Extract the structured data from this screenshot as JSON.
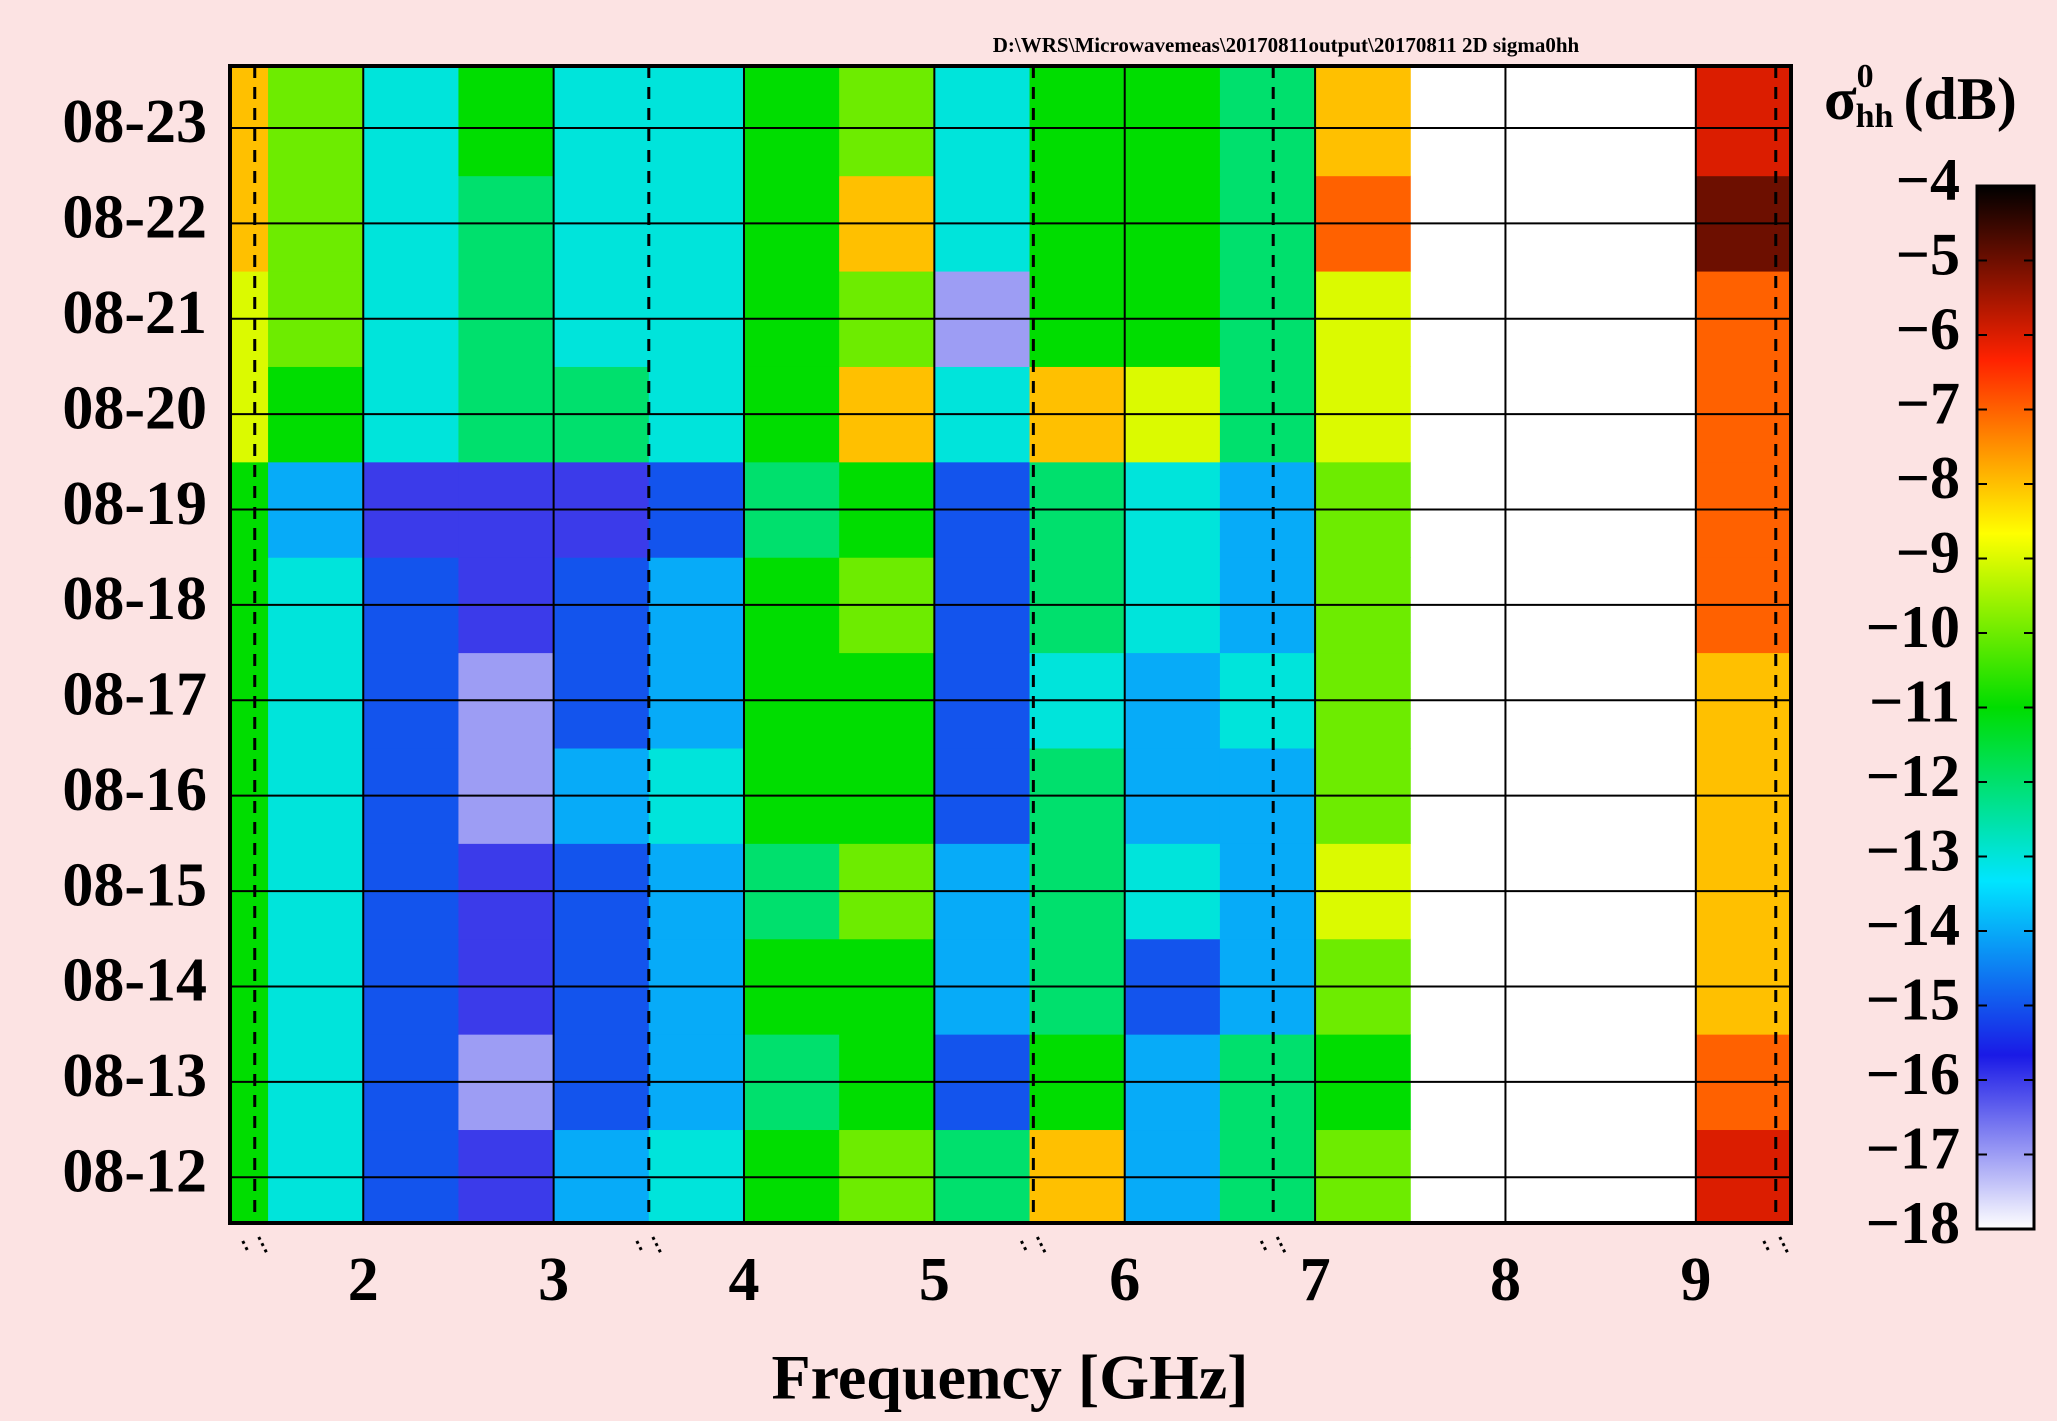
{
  "chart_data": {
    "type": "heatmap",
    "title": "D:\\WRS\\Microwavemeas\\20170811output\\20170811 2D sigma0hh",
    "x_label": "Frequency [GHz]",
    "colorbar_label": {
      "symbol": "σ",
      "sup": "0",
      "sub": "hh",
      "unit": "(dB)"
    },
    "x_bins": [
      1.3,
      1.5,
      2.0,
      2.5,
      3.0,
      3.5,
      4.0,
      4.5,
      5.0,
      5.5,
      6.0,
      6.5,
      7.0,
      7.5,
      8.0,
      8.5,
      9.0,
      9.5
    ],
    "xlim": [
      1.3,
      9.5
    ],
    "xticks": [
      2,
      3,
      4,
      5,
      6,
      7,
      8,
      9
    ],
    "y": [
      "08-12",
      "08-13",
      "08-14",
      "08-15",
      "08-16",
      "08-17",
      "08-18",
      "08-19",
      "08-20",
      "08-21",
      "08-22",
      "08-23"
    ],
    "z": [
      [
        -11,
        -13,
        -15,
        -16,
        -14,
        -13,
        -11,
        -10,
        -12,
        -8,
        -14,
        -12,
        -10,
        null,
        null,
        null,
        -6
      ],
      [
        -11,
        -13,
        -15,
        -17,
        -15,
        -14,
        -12,
        -11,
        -15,
        -11,
        -14,
        -12,
        -11,
        null,
        null,
        null,
        -7
      ],
      [
        -11,
        -13,
        -15,
        -16,
        -15,
        -14,
        -11,
        -11,
        -14,
        -12,
        -15,
        -14,
        -10,
        null,
        null,
        null,
        -8
      ],
      [
        -11,
        -13,
        -15,
        -16,
        -15,
        -14,
        -12,
        -10,
        -14,
        -12,
        -13,
        -14,
        -9,
        null,
        null,
        null,
        -8
      ],
      [
        -11,
        -13,
        -15,
        -17,
        -14,
        -13,
        -11,
        -11,
        -15,
        -12,
        -14,
        -14,
        -10,
        null,
        null,
        null,
        -8
      ],
      [
        -11,
        -13,
        -15,
        -17,
        -15,
        -14,
        -11,
        -11,
        -15,
        -13,
        -14,
        -13,
        -10,
        null,
        null,
        null,
        -8
      ],
      [
        -11,
        -13,
        -15,
        -16,
        -15,
        -14,
        -11,
        -10,
        -15,
        -12,
        -13,
        -14,
        -10,
        null,
        null,
        null,
        -7
      ],
      [
        -11,
        -14,
        -16,
        -16,
        -16,
        -15,
        -12,
        -11,
        -15,
        -12,
        -13,
        -14,
        -10,
        null,
        null,
        null,
        -7
      ],
      [
        -9,
        -11,
        -13,
        -12,
        -12,
        -13,
        -11,
        -8,
        -13,
        -8,
        -9,
        -12,
        -9,
        null,
        null,
        null,
        -7
      ],
      [
        -9,
        -10,
        -13,
        -12,
        -13,
        -13,
        -11,
        -10,
        -17,
        -11,
        -11,
        -12,
        -9,
        null,
        null,
        null,
        -7
      ],
      [
        -8,
        -10,
        -13,
        -12,
        -13,
        -13,
        -11,
        -8,
        -13,
        -11,
        -11,
        -12,
        -7,
        null,
        null,
        null,
        -5
      ],
      [
        -8,
        -10,
        -13,
        -11,
        -13,
        -13,
        -11,
        -10,
        -13,
        -11,
        -11,
        -12,
        -8,
        null,
        null,
        null,
        -6
      ]
    ],
    "dashed_lines": [
      1.43,
      3.5,
      5.52,
      6.78,
      9.42
    ],
    "clim": [
      -18,
      -4
    ],
    "cticks": [
      {
        "value": -4,
        "label": "−4"
      },
      {
        "value": -5,
        "label": "−5"
      },
      {
        "value": -6,
        "label": "−6"
      },
      {
        "value": -7,
        "label": "−7"
      },
      {
        "value": -8,
        "label": "−8"
      },
      {
        "value": -9,
        "label": "−9"
      },
      {
        "value": -10,
        "label": "−10"
      },
      {
        "value": -11,
        "label": "−11"
      },
      {
        "value": -12,
        "label": "−12"
      },
      {
        "value": -13,
        "label": "−13"
      },
      {
        "value": -14,
        "label": "−14"
      },
      {
        "value": -15,
        "label": "−15"
      },
      {
        "value": -16,
        "label": "−16"
      },
      {
        "value": -17,
        "label": "−17"
      },
      {
        "value": -18,
        "label": "−18"
      }
    ],
    "colormap": [
      "#ffffff",
      "#1a1ae6",
      "#00e5ff",
      "#00dd00",
      "#ffff00",
      "#ff2200",
      "#000000"
    ],
    "grid": true
  }
}
